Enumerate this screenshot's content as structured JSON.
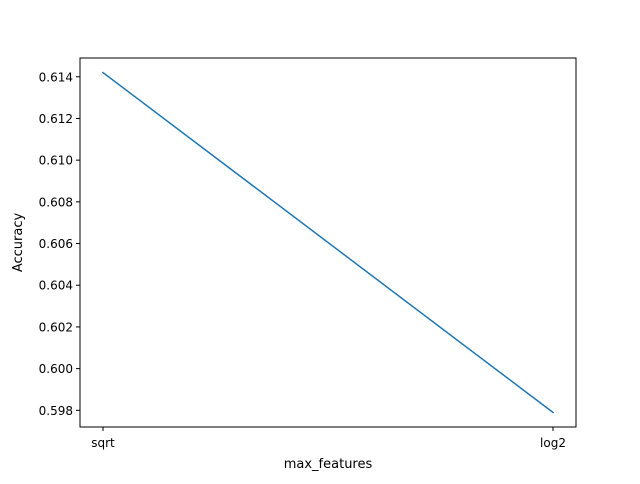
{
  "chart_data": {
    "type": "line",
    "title": "",
    "xlabel": "max_features",
    "ylabel": "Accuracy",
    "categories": [
      "sqrt",
      "log2"
    ],
    "series": [
      {
        "values": [
          0.6142,
          0.5979
        ],
        "color": "#1f77b4"
      }
    ],
    "ylim": [
      0.5972,
      0.6149
    ],
    "yticks": [
      0.598,
      0.6,
      0.602,
      0.604,
      0.606,
      0.608,
      0.61,
      0.612,
      0.614
    ],
    "ytick_labels": [
      "0.598",
      "0.600",
      "0.602",
      "0.604",
      "0.606",
      "0.608",
      "0.610",
      "0.612",
      "0.614"
    ],
    "grid": false,
    "legend": "none"
  }
}
